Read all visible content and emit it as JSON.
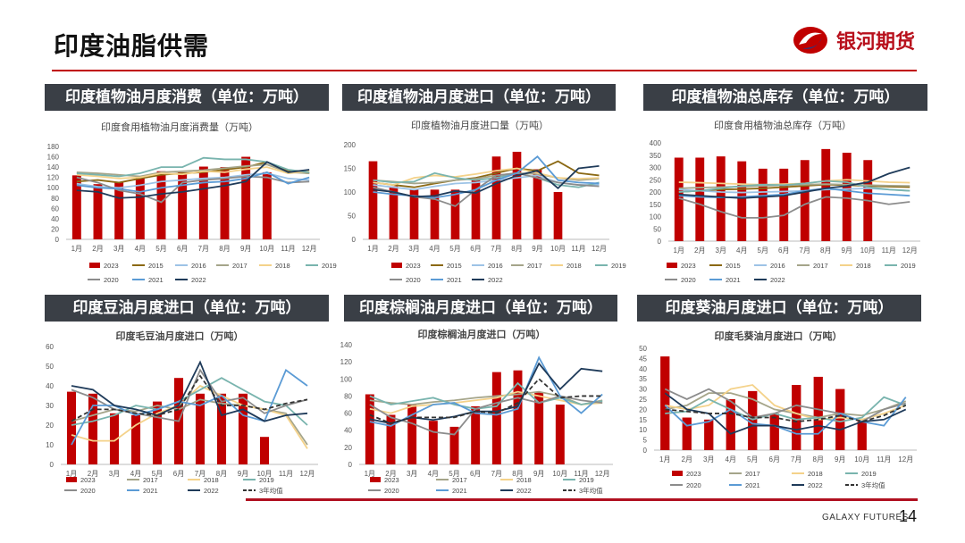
{
  "page": {
    "title": "印度油脂供需",
    "brand_name": "银河期货",
    "footer_brand": "GALAXY FUTURES",
    "page_number": "14"
  },
  "panels": [
    {
      "header": "印度植物油月度消费（单位：万吨）"
    },
    {
      "header": "印度植物油月度进口（单位：万吨）"
    },
    {
      "header": "印度植物油总库存（单位：万吨）"
    },
    {
      "header": "印度豆油月度进口（单位：万吨）"
    },
    {
      "header": "印度棕榈油月度进口（单位：万吨）"
    },
    {
      "header": "印度葵油月度进口（单位：万吨）"
    }
  ],
  "colors": {
    "2023": "#c00000",
    "2015": "#8b6914",
    "2016": "#9dc3e6",
    "2017": "#a5a58a",
    "2018": "#f4d28a",
    "2019": "#79b4ae",
    "2020": "#8c8c8c",
    "2021": "#5b9bd5",
    "2022": "#1f3b5a",
    "avg": "#333333"
  },
  "chart_data": [
    {
      "type": "bar",
      "title": "印度食用植物油月度消费量（万吨）",
      "categories": [
        "1月",
        "2月",
        "3月",
        "4月",
        "5月",
        "6月",
        "7月",
        "8月",
        "9月",
        "10月",
        "11月",
        "12月"
      ],
      "ylim": [
        0,
        180
      ],
      "yticks": [
        0,
        20,
        40,
        60,
        80,
        100,
        120,
        140,
        160,
        180
      ],
      "bar_series": {
        "name": "2023",
        "values": [
          124,
          107,
          111,
          120,
          132,
          130,
          141,
          140,
          160,
          130,
          null,
          null
        ]
      },
      "series": [
        {
          "name": "2015",
          "values": [
            112,
            115,
            110,
            118,
            125,
            128,
            130,
            135,
            140,
            150,
            132,
            128
          ]
        },
        {
          "name": "2016",
          "values": [
            108,
            102,
            100,
            105,
            112,
            115,
            118,
            120,
            125,
            128,
            118,
            115
          ]
        },
        {
          "name": "2017",
          "values": [
            130,
            128,
            125,
            122,
            130,
            132,
            134,
            138,
            142,
            145,
            130,
            128
          ]
        },
        {
          "name": "2018",
          "values": [
            125,
            122,
            118,
            120,
            128,
            126,
            132,
            130,
            136,
            140,
            128,
            132
          ]
        },
        {
          "name": "2019",
          "values": [
            128,
            125,
            122,
            128,
            140,
            140,
            158,
            155,
            155,
            150,
            135,
            130
          ]
        },
        {
          "name": "2020",
          "values": [
            120,
            110,
            95,
            88,
            72,
            110,
            115,
            118,
            122,
            120,
            110,
            112
          ]
        },
        {
          "name": "2021",
          "values": [
            105,
            100,
            98,
            92,
            100,
            105,
            110,
            112,
            118,
            130,
            108,
            120
          ]
        },
        {
          "name": "2022",
          "values": [
            95,
            92,
            80,
            82,
            88,
            92,
            98,
            104,
            112,
            150,
            130,
            135
          ]
        }
      ]
    },
    {
      "type": "bar",
      "title": "印度植物油月度进口量（万吨）",
      "categories": [
        "1月",
        "2月",
        "3月",
        "4月",
        "5月",
        "6月",
        "7月",
        "8月",
        "9月",
        "10月",
        "11月",
        "12月"
      ],
      "ylim": [
        0,
        200
      ],
      "yticks": [
        0,
        50,
        100,
        150,
        200
      ],
      "bar_series": {
        "name": "2023",
        "values": [
          165,
          112,
          105,
          105,
          105,
          130,
          175,
          185,
          148,
          100,
          null,
          null
        ]
      },
      "series": [
        {
          "name": "2015",
          "values": [
            120,
            115,
            110,
            118,
            125,
            130,
            140,
            150,
            145,
            165,
            140,
            135
          ]
        },
        {
          "name": "2016",
          "values": [
            115,
            110,
            105,
            112,
            118,
            120,
            125,
            130,
            135,
            120,
            115,
            115
          ]
        },
        {
          "name": "2017",
          "values": [
            125,
            122,
            118,
            120,
            125,
            128,
            135,
            140,
            138,
            130,
            125,
            128
          ]
        },
        {
          "name": "2018",
          "values": [
            120,
            115,
            130,
            135,
            132,
            138,
            145,
            150,
            140,
            130,
            128,
            130
          ]
        },
        {
          "name": "2019",
          "values": [
            125,
            120,
            122,
            140,
            130,
            125,
            130,
            140,
            130,
            115,
            110,
            120
          ]
        },
        {
          "name": "2020",
          "values": [
            110,
            100,
            90,
            85,
            70,
            105,
            135,
            140,
            130,
            120,
            115,
            112
          ]
        },
        {
          "name": "2021",
          "values": [
            100,
            95,
            92,
            88,
            95,
            105,
            125,
            140,
            175,
            125,
            120,
            118
          ]
        },
        {
          "name": "2022",
          "values": [
            105,
            100,
            90,
            92,
            102,
            98,
            118,
            135,
            145,
            108,
            150,
            155
          ]
        }
      ]
    },
    {
      "type": "bar",
      "title": "印度食用植物油总库存（万吨）",
      "categories": [
        "1月",
        "2月",
        "3月",
        "4月",
        "5月",
        "6月",
        "7月",
        "8月",
        "9月",
        "10月",
        "11月",
        "12月"
      ],
      "ylim": [
        0,
        400
      ],
      "yticks": [
        0,
        50,
        100,
        150,
        200,
        250,
        300,
        350,
        400
      ],
      "bar_series": {
        "name": "2023",
        "values": [
          340,
          340,
          345,
          325,
          295,
          295,
          330,
          375,
          360,
          330,
          null,
          null
        ]
      },
      "series": [
        {
          "name": "2015",
          "values": [
            200,
            205,
            210,
            212,
            215,
            220,
            225,
            230,
            228,
            225,
            222,
            220
          ]
        },
        {
          "name": "2016",
          "values": [
            210,
            205,
            200,
            198,
            200,
            202,
            205,
            210,
            212,
            215,
            210,
            205
          ]
        },
        {
          "name": "2017",
          "values": [
            215,
            218,
            220,
            222,
            225,
            228,
            230,
            232,
            230,
            228,
            226,
            225
          ]
        },
        {
          "name": "2018",
          "values": [
            240,
            238,
            235,
            232,
            230,
            232,
            235,
            245,
            250,
            245,
            240,
            238
          ]
        },
        {
          "name": "2019",
          "values": [
            200,
            205,
            215,
            225,
            230,
            228,
            235,
            245,
            240,
            220,
            210,
            205
          ]
        },
        {
          "name": "2020",
          "values": [
            175,
            150,
            120,
            95,
            95,
            105,
            150,
            180,
            175,
            165,
            150,
            160
          ]
        },
        {
          "name": "2021",
          "values": [
            185,
            180,
            178,
            180,
            185,
            190,
            205,
            215,
            205,
            195,
            190,
            185
          ]
        },
        {
          "name": "2022",
          "values": [
            190,
            185,
            180,
            175,
            180,
            185,
            200,
            215,
            225,
            240,
            275,
            300
          ]
        }
      ]
    },
    {
      "type": "bar",
      "title": "印度毛豆油月度进口（万吨）",
      "categories": [
        "1月",
        "2月",
        "3月",
        "4月",
        "5月",
        "6月",
        "7月",
        "8月",
        "9月",
        "10月",
        "11月",
        "12月"
      ],
      "ylim": [
        0,
        60
      ],
      "yticks": [
        0,
        10,
        20,
        30,
        40,
        50,
        60
      ],
      "bar_series": {
        "name": "2023",
        "values": [
          37,
          36,
          26,
          25,
          32,
          44,
          36,
          36,
          36,
          14,
          null,
          null
        ]
      },
      "series": [
        {
          "name": "2017",
          "values": [
            22,
            25,
            28,
            27,
            30,
            28,
            33,
            31,
            30,
            28,
            26,
            10
          ]
        },
        {
          "name": "2018",
          "values": [
            15,
            12,
            12,
            20,
            26,
            30,
            40,
            35,
            30,
            28,
            25,
            8
          ]
        },
        {
          "name": "2019",
          "values": [
            20,
            22,
            25,
            30,
            28,
            32,
            38,
            44,
            38,
            32,
            30,
            20
          ]
        },
        {
          "name": "2020",
          "values": [
            38,
            34,
            28,
            26,
            24,
            22,
            48,
            32,
            34,
            26,
            30,
            33
          ]
        },
        {
          "name": "2021",
          "values": [
            10,
            30,
            30,
            25,
            28,
            32,
            30,
            35,
            25,
            22,
            48,
            40
          ]
        },
        {
          "name": "2022",
          "values": [
            40,
            38,
            30,
            28,
            25,
            30,
            52,
            25,
            28,
            22,
            25,
            26
          ]
        },
        {
          "name": "3年均值",
          "values": [
            22,
            28,
            28,
            26,
            25,
            28,
            45,
            30,
            30,
            28,
            31,
            33
          ]
        }
      ]
    },
    {
      "type": "bar",
      "title": "印度棕榈油月度进口（万吨）",
      "categories": [
        "1月",
        "2月",
        "3月",
        "4月",
        "5月",
        "6月",
        "7月",
        "8月",
        "9月",
        "10月",
        "11月",
        "12月"
      ],
      "ylim": [
        0,
        140
      ],
      "yticks": [
        0,
        20,
        40,
        60,
        80,
        100,
        120,
        140
      ],
      "bar_series": {
        "name": "2023",
        "values": [
          82,
          58,
          70,
          51,
          44,
          68,
          108,
          110,
          84,
          70,
          null,
          null
        ]
      },
      "series": [
        {
          "name": "2017",
          "values": [
            75,
            72,
            70,
            73,
            75,
            78,
            80,
            82,
            85,
            80,
            70,
            75
          ]
        },
        {
          "name": "2018",
          "values": [
            65,
            60,
            68,
            70,
            72,
            75,
            78,
            85,
            80,
            75,
            70,
            72
          ]
        },
        {
          "name": "2019",
          "values": [
            80,
            70,
            74,
            78,
            70,
            65,
            68,
            95,
            72,
            78,
            70,
            74
          ]
        },
        {
          "name": "2020",
          "values": [
            70,
            55,
            48,
            38,
            35,
            65,
            72,
            78,
            72,
            80,
            75,
            72
          ]
        },
        {
          "name": "2021",
          "values": [
            50,
            45,
            58,
            70,
            72,
            60,
            58,
            65,
            125,
            80,
            60,
            82
          ]
        },
        {
          "name": "2022",
          "values": [
            53,
            48,
            55,
            52,
            56,
            62,
            62,
            68,
            118,
            88,
            112,
            109
          ]
        },
        {
          "name": "3年均值",
          "values": [
            58,
            48,
            55,
            55,
            55,
            62,
            60,
            72,
            100,
            78,
            80,
            80
          ]
        }
      ]
    },
    {
      "type": "bar",
      "title": "印度毛葵油月度进口（万吨）",
      "categories": [
        "1月",
        "2月",
        "3月",
        "4月",
        "5月",
        "6月",
        "7月",
        "8月",
        "9月",
        "10月",
        "11月",
        "12月"
      ],
      "ylim": [
        0,
        50
      ],
      "yticks": [
        0,
        5,
        10,
        15,
        20,
        25,
        30,
        35,
        40,
        45,
        50
      ],
      "bar_series": {
        "name": "2023",
        "values": [
          46,
          16,
          15,
          25,
          29,
          18,
          32,
          36,
          30,
          14,
          null,
          null
        ]
      },
      "series": [
        {
          "name": "2017",
          "values": [
            20,
            22,
            28,
            28,
            25,
            20,
            18,
            16,
            18,
            17,
            20,
            24
          ]
        },
        {
          "name": "2018",
          "values": [
            22,
            20,
            22,
            30,
            32,
            22,
            18,
            15,
            16,
            15,
            18,
            22
          ]
        },
        {
          "name": "2019",
          "values": [
            18,
            19,
            25,
            20,
            15,
            18,
            15,
            16,
            14,
            16,
            26,
            22
          ]
        },
        {
          "name": "2020",
          "values": [
            30,
            25,
            30,
            24,
            16,
            18,
            22,
            20,
            18,
            14,
            20,
            23
          ]
        },
        {
          "name": "2021",
          "values": [
            22,
            12,
            14,
            20,
            13,
            12,
            8,
            8,
            18,
            14,
            12,
            26
          ]
        },
        {
          "name": "2022",
          "values": [
            28,
            20,
            18,
            8,
            12,
            12,
            10,
            12,
            10,
            14,
            15,
            20
          ]
        },
        {
          "name": "3年均值",
          "values": [
            20,
            19,
            18,
            18,
            16,
            16,
            14,
            15,
            17,
            14,
            17,
            22
          ]
        }
      ]
    }
  ]
}
